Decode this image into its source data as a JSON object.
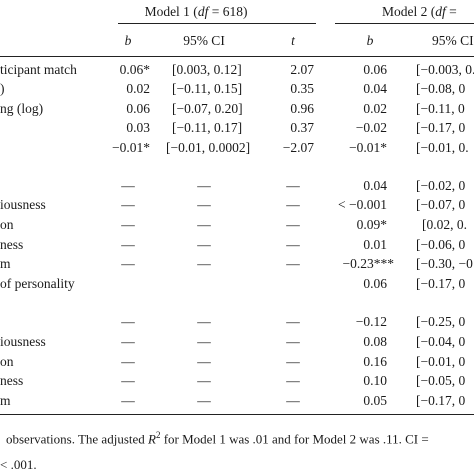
{
  "header": {
    "model1_prefix": "Model 1 (",
    "model1_df": "df",
    "model1_suffix": " = 618)",
    "model2_prefix": "Model 2 (",
    "model2_df": "df",
    "model2_suffix": " =",
    "col_b1": "b",
    "col_ci1": "95% CI",
    "col_t": "t",
    "col_b2": "b",
    "col_ci2": "95% CI"
  },
  "rows": [
    {
      "label": "ticipant match",
      "b1": "0.06*",
      "ci1": "[0.003, 0.12]",
      "t": "2.07",
      "b2": "0.06",
      "ci2": "[−0.003, 0."
    },
    {
      "label": ")",
      "b1": "0.02",
      "ci1": "[−0.11, 0.15]",
      "t": "0.35",
      "b2": "0.04",
      "ci2": "[−0.08, 0"
    },
    {
      "label": "ng (log)",
      "b1": "0.06",
      "ci1": "[−0.07, 0.20]",
      "t": "0.96",
      "b2": "0.02",
      "ci2": "[−0.11, 0"
    },
    {
      "label": "",
      "b1": "0.03",
      "ci1": "[−0.11, 0.17]",
      "t": "0.37",
      "b2": "−0.02",
      "ci2": "[−0.17, 0"
    },
    {
      "label": "",
      "b1": "−0.01*",
      "ci1": "[−0.01, 0.0002]",
      "t": "−2.07",
      "b2": "−0.01*",
      "ci2": "[−0.01, 0."
    },
    {
      "label": "",
      "b1": "—",
      "ci1": "—",
      "t": "—",
      "b2": "0.04",
      "ci2": "[−0.02, 0"
    },
    {
      "label": "iousness",
      "b1": "—",
      "ci1": "—",
      "t": "—",
      "b2": "< −0.001",
      "ci2": "[−0.07, 0"
    },
    {
      "label": "on",
      "b1": "—",
      "ci1": "—",
      "t": "—",
      "b2": "0.09*",
      "ci2": "[0.02, 0."
    },
    {
      "label": "ness",
      "b1": "—",
      "ci1": "—",
      "t": "—",
      "b2": "0.01",
      "ci2": "[−0.06, 0"
    },
    {
      "label": "m",
      "b1": "—",
      "ci1": "—",
      "t": "—",
      "b2": "−0.23***",
      "ci2": "[−0.30, −0"
    },
    {
      "label": "of personality",
      "b1": "",
      "ci1": "",
      "t": "",
      "b2": "0.06",
      "ci2": "[−0.17, 0"
    },
    {
      "label": "",
      "b1": "—",
      "ci1": "—",
      "t": "—",
      "b2": "−0.12",
      "ci2": "[−0.25, 0"
    },
    {
      "label": "iousness",
      "b1": "—",
      "ci1": "—",
      "t": "—",
      "b2": "0.08",
      "ci2": "[−0.04, 0"
    },
    {
      "label": "on",
      "b1": "—",
      "ci1": "—",
      "t": "—",
      "b2": "0.16",
      "ci2": "[−0.01, 0"
    },
    {
      "label": "ness",
      "b1": "—",
      "ci1": "—",
      "t": "—",
      "b2": "0.10",
      "ci2": "[−0.05, 0"
    },
    {
      "label": "m",
      "b1": "—",
      "ci1": "—",
      "t": "—",
      "b2": "0.05",
      "ci2": "[−0.17, 0"
    }
  ],
  "footnote": {
    "line1_prefix": "observations. The adjusted ",
    "line1_r": "R",
    "line1_sup": "2",
    "line1_suffix": " for Model 1 was .01 and for Model 2 was .11. CI =",
    "line2": "< .001."
  }
}
